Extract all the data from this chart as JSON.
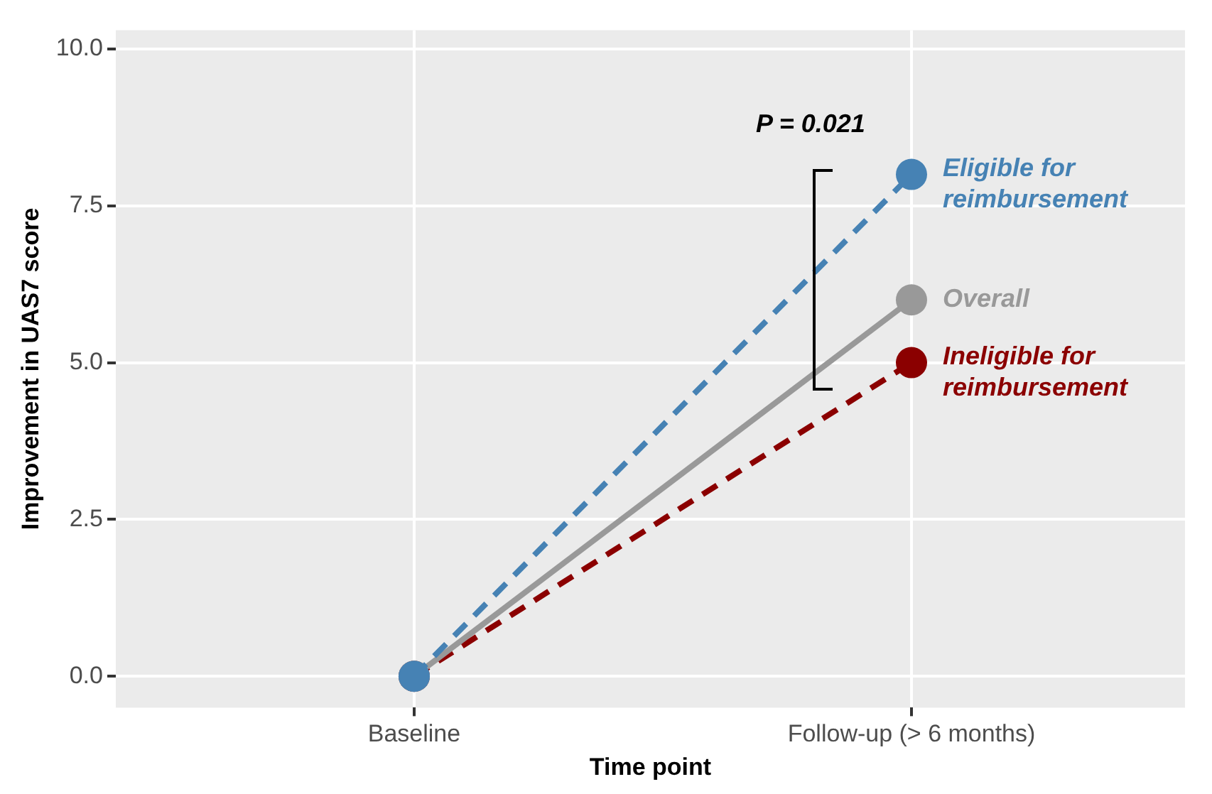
{
  "chart_data": {
    "type": "line",
    "xlabel": "Time point",
    "ylabel": "Improvement in UAS7 score",
    "categories": [
      "Baseline",
      "Follow-up (> 6 months)"
    ],
    "series": [
      {
        "name": "Eligible for reimbursement",
        "color": "#4682b4",
        "values": [
          0,
          8
        ],
        "line_style": "dashed"
      },
      {
        "name": "Overall",
        "color": "#999999",
        "values": [
          0,
          6
        ],
        "line_style": "solid"
      },
      {
        "name": "Ineligible for reimbursement",
        "color": "#8b0000",
        "values": [
          0,
          5
        ],
        "line_style": "dashed"
      }
    ],
    "ylim": [
      -0.5,
      10.3
    ],
    "yticks": [
      {
        "value": 0,
        "label": "0.0"
      },
      {
        "value": 2.5,
        "label": "2.5"
      },
      {
        "value": 5,
        "label": "5.0"
      },
      {
        "value": 7.5,
        "label": "7.5"
      },
      {
        "value": 10,
        "label": "10.0"
      }
    ],
    "annotations": [
      "P = 0.021"
    ],
    "grid": true,
    "legend": false,
    "marker": "circle"
  }
}
